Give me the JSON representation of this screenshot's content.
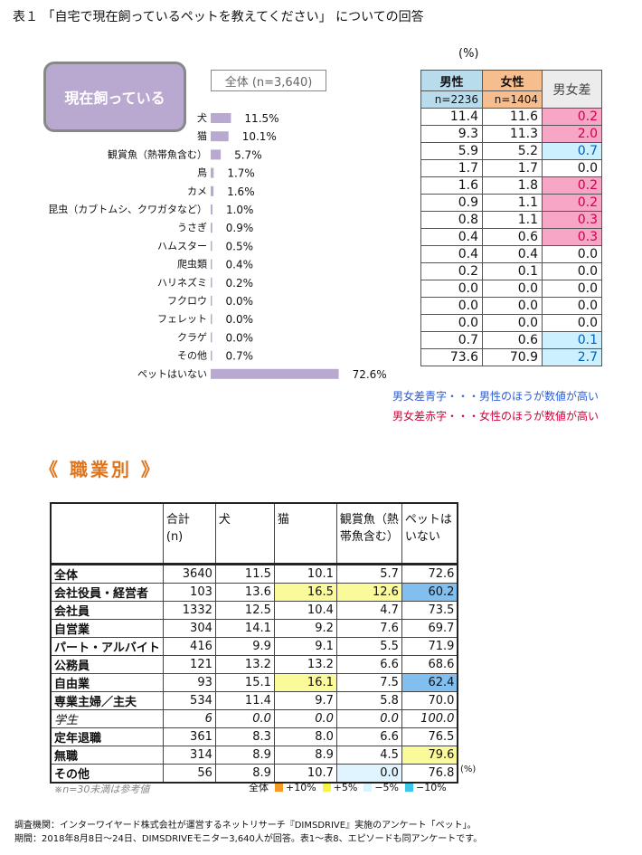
{
  "title": "表１ 「自宅で現在飼っているペットを教えてください」 についての回答",
  "current_button": "現在飼っている",
  "total_label": "全体 (n=3,640)",
  "pct_unit": "(%)",
  "chart_data": {
    "type": "bar",
    "orientation": "horizontal",
    "categories": [
      "犬",
      "猫",
      "観賞魚（熱帯魚含む）",
      "鳥",
      "カメ",
      "昆虫（カブトムシ、クワガタなど）",
      "うさぎ",
      "ハムスター",
      "爬虫類",
      "ハリネズミ",
      "フクロウ",
      "フェレット",
      "クラゲ",
      "その他",
      "ペットはいない"
    ],
    "values": [
      11.5,
      10.1,
      5.7,
      1.7,
      1.6,
      1.0,
      0.9,
      0.5,
      0.4,
      0.2,
      0.0,
      0.0,
      0.0,
      0.7,
      72.6
    ],
    "value_labels": [
      "11.5%",
      "10.1%",
      "5.7%",
      "1.7%",
      "1.6%",
      "1.0%",
      "0.9%",
      "0.5%",
      "0.4%",
      "0.2%",
      "0.0%",
      "0.0%",
      "0.0%",
      "0.7%",
      "72.6%"
    ],
    "bar_color": "#b9a9d1",
    "xlim": [
      0,
      100
    ],
    "grid": false
  },
  "gender_table": {
    "headers": {
      "male": "男性",
      "female": "女性",
      "diff": "男女差"
    },
    "n": {
      "male": "n=2236",
      "female": "n=1404"
    },
    "rows": [
      {
        "male": "11.4",
        "female": "11.6",
        "diff": "0.2",
        "tone": "pos"
      },
      {
        "male": "9.3",
        "female": "11.3",
        "diff": "2.0",
        "tone": "pos"
      },
      {
        "male": "5.9",
        "female": "5.2",
        "diff": "0.7",
        "tone": "neg"
      },
      {
        "male": "1.7",
        "female": "1.7",
        "diff": "0.0",
        "tone": ""
      },
      {
        "male": "1.6",
        "female": "1.8",
        "diff": "0.2",
        "tone": "pos"
      },
      {
        "male": "0.9",
        "female": "1.1",
        "diff": "0.2",
        "tone": "pos"
      },
      {
        "male": "0.8",
        "female": "1.1",
        "diff": "0.3",
        "tone": "pos"
      },
      {
        "male": "0.4",
        "female": "0.6",
        "diff": "0.3",
        "tone": "pos"
      },
      {
        "male": "0.4",
        "female": "0.4",
        "diff": "0.0",
        "tone": ""
      },
      {
        "male": "0.2",
        "female": "0.1",
        "diff": "0.0",
        "tone": ""
      },
      {
        "male": "0.0",
        "female": "0.0",
        "diff": "0.0",
        "tone": ""
      },
      {
        "male": "0.0",
        "female": "0.0",
        "diff": "0.0",
        "tone": ""
      },
      {
        "male": "0.0",
        "female": "0.0",
        "diff": "0.0",
        "tone": ""
      },
      {
        "male": "0.7",
        "female": "0.6",
        "diff": "0.1",
        "tone": "neg"
      },
      {
        "male": "73.6",
        "female": "70.9",
        "diff": "2.7",
        "tone": "neg"
      }
    ],
    "legend_blue": "男女差青字・・・男性のほうが数値が高い",
    "legend_red": "男女差赤字・・・女性のほうが数値が高い",
    "colors": {
      "male_header": "#b9dcec",
      "female_header": "#f6be8e",
      "pos_bg": "#f7a6c6",
      "pos_text": "#d0004a",
      "neg_bg": "#cdf0ff",
      "neg_text": "#0060c0"
    }
  },
  "occupation": {
    "heading": "《 職業別 》",
    "headers": [
      "",
      "合計\n(n)",
      "犬",
      "猫",
      "観賞魚（熱\n帯魚含む）",
      "ペットは\nいない"
    ],
    "rows": [
      {
        "label": "全体",
        "cells": [
          "3640",
          "11.5",
          "10.1",
          "5.7",
          "72.6"
        ],
        "hl": [
          "",
          "",
          "",
          "",
          ""
        ],
        "italic": false
      },
      {
        "label": "会社役員・経営者",
        "cells": [
          "103",
          "13.6",
          "16.5",
          "12.6",
          "60.2"
        ],
        "hl": [
          "",
          "",
          "yel",
          "yel",
          "blu"
        ],
        "italic": false
      },
      {
        "label": "会社員",
        "cells": [
          "1332",
          "12.5",
          "10.4",
          "4.7",
          "73.5"
        ],
        "hl": [
          "",
          "",
          "",
          "",
          ""
        ],
        "italic": false
      },
      {
        "label": "自営業",
        "cells": [
          "304",
          "14.1",
          "9.2",
          "7.6",
          "69.7"
        ],
        "hl": [
          "",
          "",
          "",
          "",
          ""
        ],
        "italic": false
      },
      {
        "label": "パート・アルバイト",
        "cells": [
          "416",
          "9.9",
          "9.1",
          "5.5",
          "71.9"
        ],
        "hl": [
          "",
          "",
          "",
          "",
          ""
        ],
        "italic": false
      },
      {
        "label": "公務員",
        "cells": [
          "121",
          "13.2",
          "13.2",
          "6.6",
          "68.6"
        ],
        "hl": [
          "",
          "",
          "",
          "",
          ""
        ],
        "italic": false
      },
      {
        "label": "自由業",
        "cells": [
          "93",
          "15.1",
          "16.1",
          "7.5",
          "62.4"
        ],
        "hl": [
          "",
          "",
          "yel",
          "",
          "blu"
        ],
        "italic": false
      },
      {
        "label": "専業主婦／主夫",
        "cells": [
          "534",
          "11.4",
          "9.7",
          "5.8",
          "70.0"
        ],
        "hl": [
          "",
          "",
          "",
          "",
          ""
        ],
        "italic": false
      },
      {
        "label": "学生",
        "cells": [
          "6",
          "0.0",
          "0.0",
          "0.0",
          "100.0"
        ],
        "hl": [
          "",
          "",
          "",
          "",
          ""
        ],
        "italic": true
      },
      {
        "label": "定年退職",
        "cells": [
          "361",
          "8.3",
          "8.0",
          "6.6",
          "76.5"
        ],
        "hl": [
          "",
          "",
          "",
          "",
          ""
        ],
        "italic": false
      },
      {
        "label": "無職",
        "cells": [
          "314",
          "8.9",
          "8.9",
          "4.5",
          "79.6"
        ],
        "hl": [
          "",
          "",
          "",
          "",
          "yel"
        ],
        "italic": false
      },
      {
        "label": "その他",
        "cells": [
          "56",
          "8.9",
          "10.7",
          "0.0",
          "76.8"
        ],
        "hl": [
          "",
          "",
          "",
          "lcy",
          ""
        ],
        "italic": false
      }
    ],
    "pct_unit": "(%)",
    "note": "※n=30未満は参考値",
    "legend": [
      {
        "label": "全体",
        "color": ""
      },
      {
        "label": "+10%",
        "color": "#f59a23"
      },
      {
        "label": "+5%",
        "color": "#f5f545"
      },
      {
        "label": "−5%",
        "color": "#d9f3ff"
      },
      {
        "label": "−10%",
        "color": "#3cc7e8"
      }
    ]
  },
  "survey": {
    "line1": "調査機関：インターワイヤード株式会社が運営するネットリサーチ『DIMSDRIVE』実施のアンケート「ペット」。",
    "line2": "期間：2018年8月8日〜24日、DIMSDRIVEモニター3,640人が回答。表1〜表8、エピソードも同アンケートです。"
  }
}
